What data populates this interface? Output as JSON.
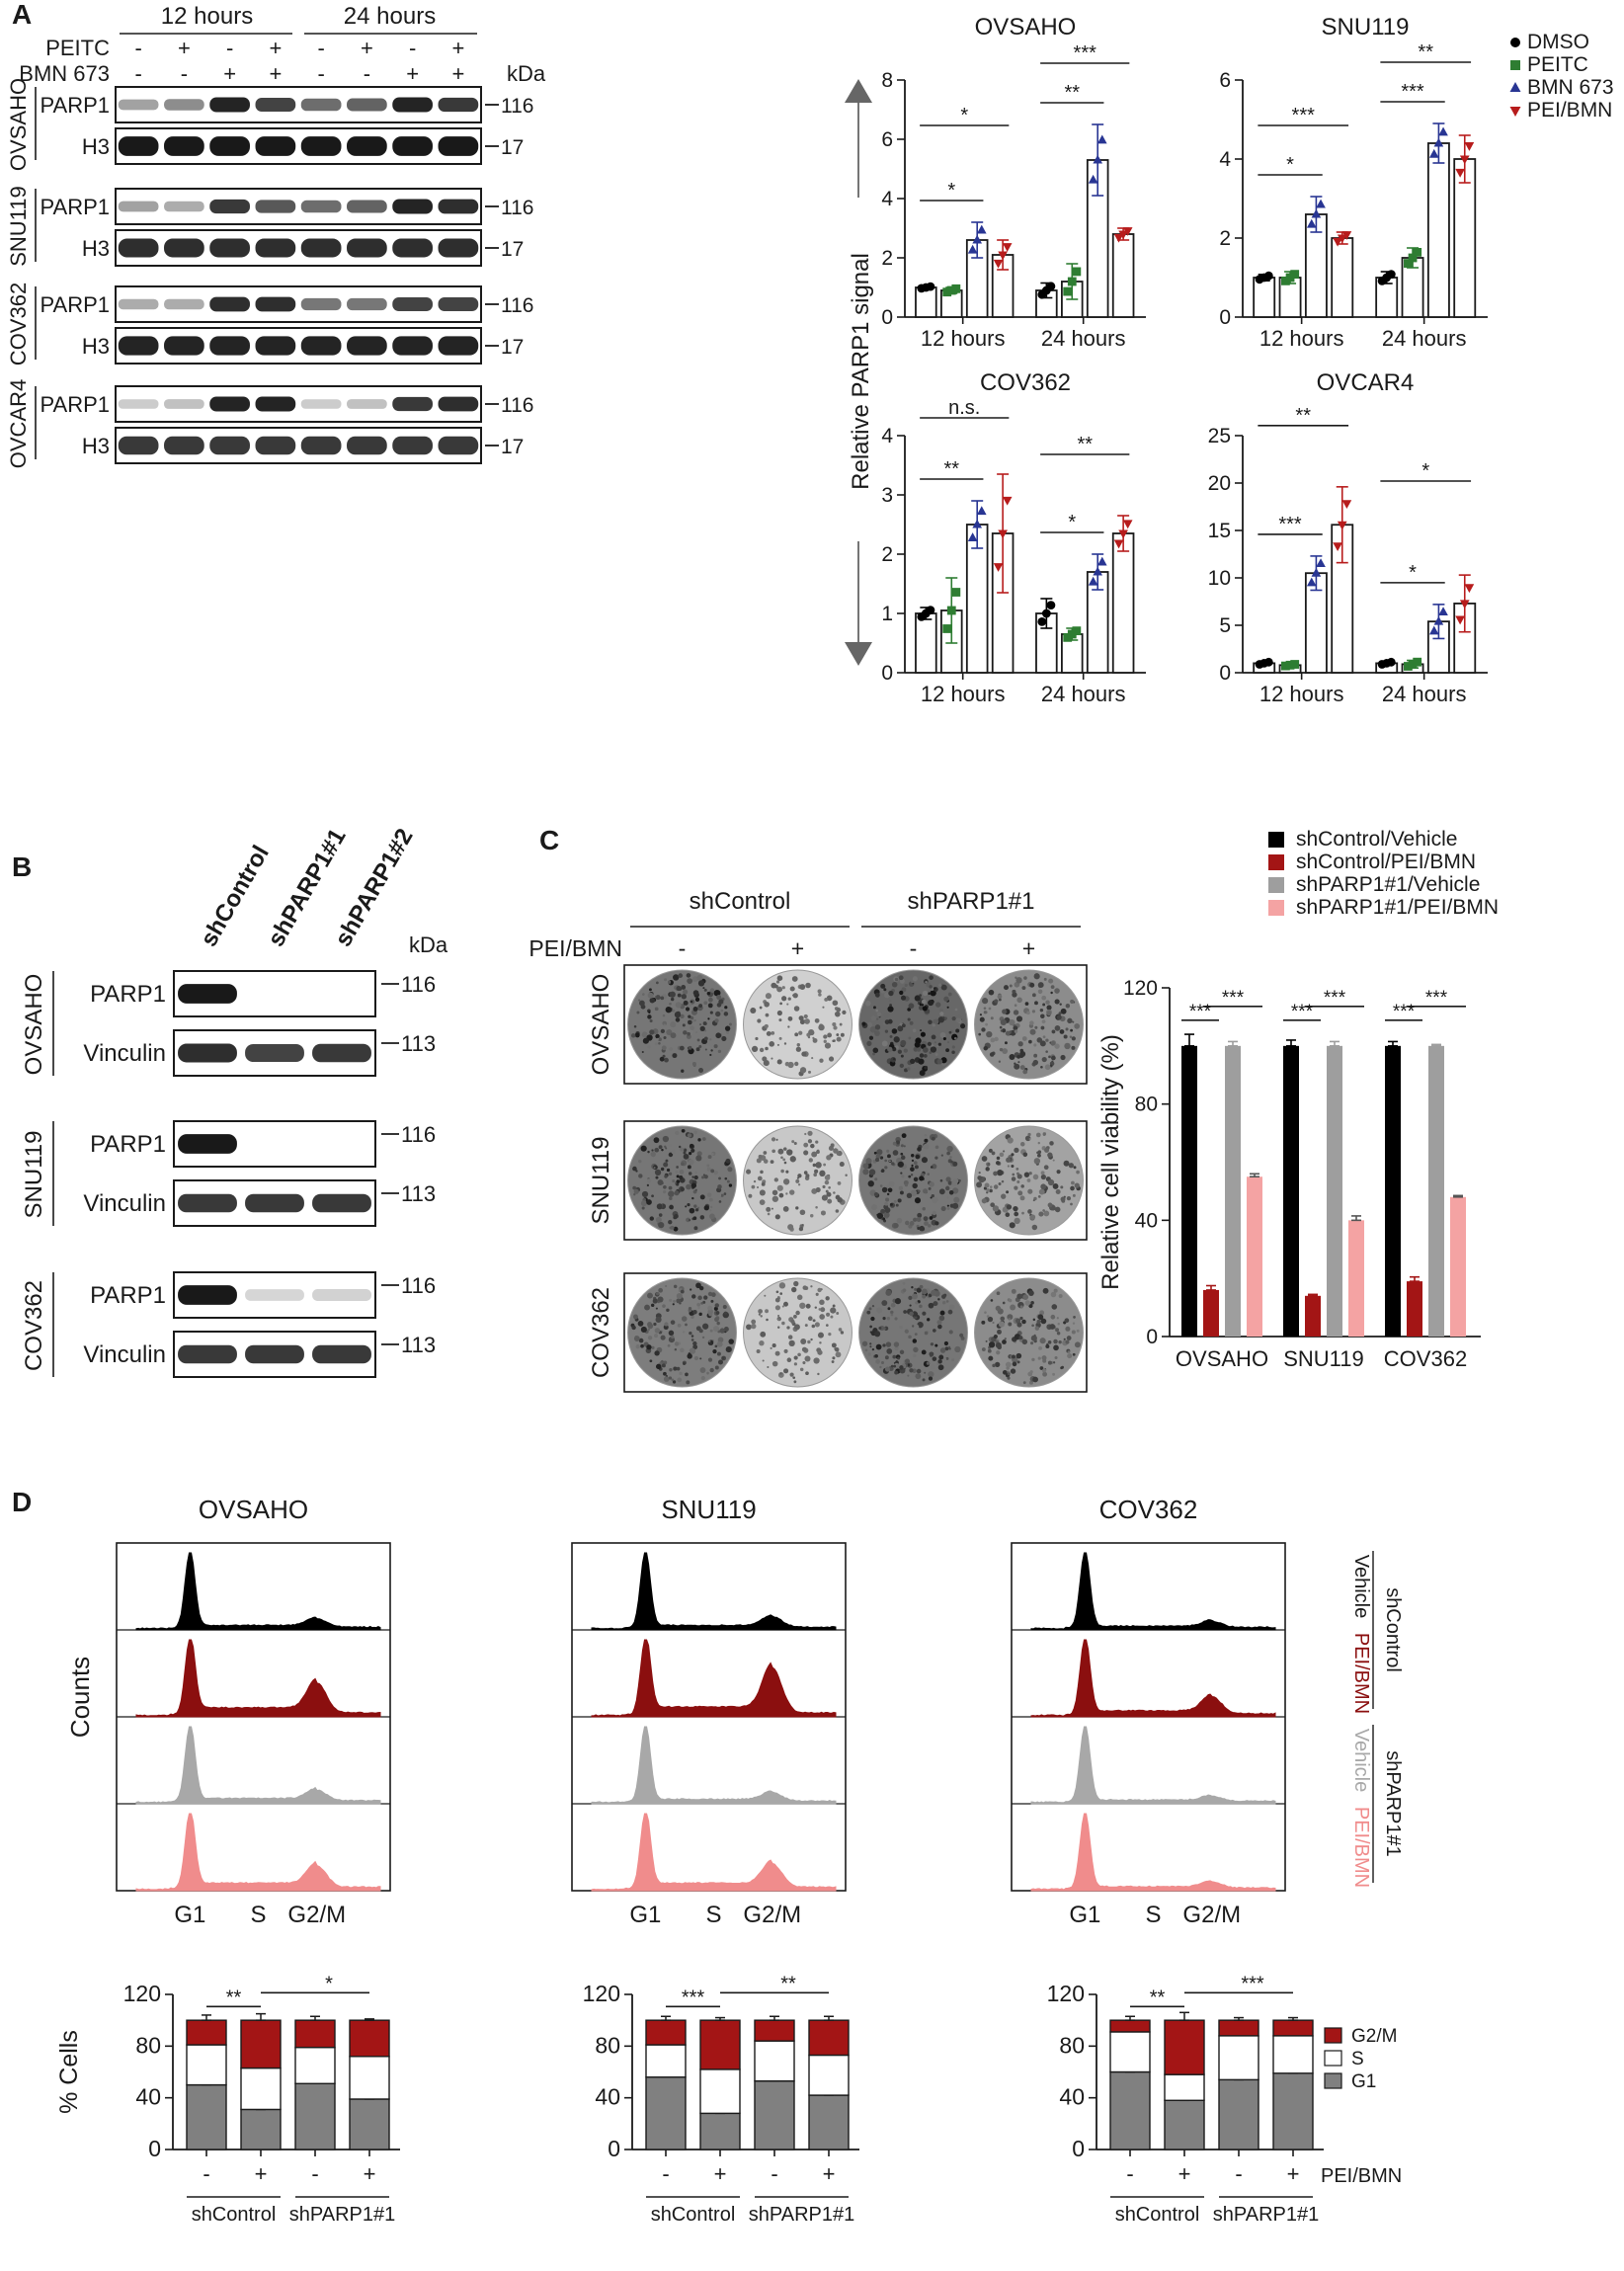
{
  "colors": {
    "dmso": "#000000",
    "peitc": "#2e7d32",
    "bmn": "#283593",
    "pei_bmn": "#b71c1c",
    "black_bar": "#000000",
    "red_bar": "#a31515",
    "grey_bar": "#9e9e9e",
    "pink_bar": "#f4a3a3",
    "hist_black": "#000000",
    "hist_red": "#8b0f0f",
    "hist_grey": "#a8a8a8",
    "hist_pink": "#f08c8c",
    "g2m": "#a31515",
    "s": "#ffffff",
    "g1": "#808080"
  },
  "panel_a": {
    "label": "A",
    "time_headers": [
      "12 hours",
      "24 hours"
    ],
    "treatment_rows": [
      {
        "name": "PEITC",
        "signs": [
          "-",
          "+",
          "-",
          "+",
          "-",
          "+",
          "-",
          "+"
        ]
      },
      {
        "name": "BMN 673",
        "signs": [
          "-",
          "-",
          "+",
          "+",
          "-",
          "-",
          "+",
          "+"
        ]
      }
    ],
    "kda_label": "kDa",
    "blots": [
      {
        "cell_line": "OVSAHO",
        "rows": [
          {
            "protein": "PARP1",
            "size": "116",
            "pattern": [
              0.35,
              0.45,
              0.95,
              0.8,
              0.6,
              0.65,
              0.95,
              0.85
            ]
          },
          {
            "protein": "H3",
            "size": "17",
            "pattern": [
              1,
              1,
              1,
              1,
              1,
              1,
              1,
              1
            ]
          }
        ]
      },
      {
        "cell_line": "SNU119",
        "rows": [
          {
            "protein": "PARP1",
            "size": "116",
            "pattern": [
              0.35,
              0.3,
              0.85,
              0.7,
              0.6,
              0.65,
              0.95,
              0.9
            ]
          },
          {
            "protein": "H3",
            "size": "17",
            "pattern": [
              0.9,
              0.9,
              0.9,
              0.9,
              0.9,
              0.9,
              0.9,
              0.9
            ]
          }
        ]
      },
      {
        "cell_line": "COV362",
        "rows": [
          {
            "protein": "PARP1",
            "size": "116",
            "pattern": [
              0.3,
              0.3,
              0.9,
              0.9,
              0.55,
              0.55,
              0.8,
              0.8
            ]
          },
          {
            "protein": "H3",
            "size": "17",
            "pattern": [
              0.95,
              0.95,
              0.95,
              0.95,
              0.95,
              0.95,
              0.95,
              0.95
            ]
          }
        ]
      },
      {
        "cell_line": "OVCAR4",
        "rows": [
          {
            "protein": "PARP1",
            "size": "116",
            "pattern": [
              0.15,
              0.2,
              0.95,
              0.95,
              0.15,
              0.2,
              0.85,
              0.9
            ]
          },
          {
            "protein": "H3",
            "size": "17",
            "pattern": [
              0.85,
              0.85,
              0.85,
              0.85,
              0.85,
              0.85,
              0.85,
              0.85
            ]
          }
        ]
      }
    ],
    "y_axis_label": "Relative PARP1 signal",
    "legend": [
      "DMSO",
      "PEITC",
      "BMN 673",
      "PEI/BMN"
    ]
  },
  "panel_b": {
    "label": "B",
    "lanes": [
      "shControl",
      "shPARP1#1",
      "shPARP1#2"
    ],
    "kda_label": "kDa",
    "blots": [
      {
        "cell_line": "OVSAHO",
        "rows": [
          {
            "protein": "PARP1",
            "size": "116",
            "pattern": [
              1,
              0,
              0
            ]
          },
          {
            "protein": "Vinculin",
            "size": "113",
            "pattern": [
              0.9,
              0.8,
              0.85
            ]
          }
        ]
      },
      {
        "cell_line": "SNU119",
        "rows": [
          {
            "protein": "PARP1",
            "size": "116",
            "pattern": [
              1,
              0,
              0
            ]
          },
          {
            "protein": "Vinculin",
            "size": "113",
            "pattern": [
              0.85,
              0.85,
              0.85
            ]
          }
        ]
      },
      {
        "cell_line": "COV362",
        "rows": [
          {
            "protein": "PARP1",
            "size": "116",
            "pattern": [
              1,
              0.1,
              0.12
            ]
          },
          {
            "protein": "Vinculin",
            "size": "113",
            "pattern": [
              0.85,
              0.85,
              0.85
            ]
          }
        ]
      }
    ]
  },
  "panel_c": {
    "label": "C",
    "group_headers": [
      "shControl",
      "shPARP1#1"
    ],
    "treatment_label": "PEI/BMN",
    "signs": [
      "-",
      "+",
      "-",
      "+"
    ],
    "rows": [
      "OVSAHO",
      "SNU119",
      "COV362"
    ],
    "well_density": [
      [
        0.85,
        0.25,
        0.95,
        0.7
      ],
      [
        0.85,
        0.3,
        0.85,
        0.55
      ],
      [
        0.8,
        0.3,
        0.85,
        0.7
      ]
    ],
    "legend": [
      "shControl/Vehicle",
      "shControl/PEI/BMN",
      "shPARP1#1/Vehicle",
      "shPARP1#1/PEI/BMN"
    ],
    "y_axis_label": "Relative cell viability (%)"
  },
  "panel_d": {
    "label": "D",
    "cell_lines": [
      "OVSAHO",
      "SNU119",
      "COV362"
    ],
    "y_axis_label": "Counts",
    "phase_labels": [
      "G1",
      "S",
      "G2/M"
    ],
    "side_group_labels": [
      "shControl",
      "shPARP1#1"
    ],
    "side_row_labels": [
      "Vehicle",
      "PEI/BMN",
      "Vehicle",
      "PEI/BMN"
    ],
    "histograms": [
      [
        {
          "g1": 1.0,
          "s": 0.15,
          "g2": 0.2
        },
        {
          "g1": 1.0,
          "s": 0.45,
          "g2": 0.7
        },
        {
          "g1": 1.0,
          "s": 0.2,
          "g2": 0.25
        },
        {
          "g1": 1.0,
          "s": 0.35,
          "g2": 0.5
        }
      ],
      [
        {
          "g1": 1.0,
          "s": 0.15,
          "g2": 0.25
        },
        {
          "g1": 1.0,
          "s": 0.5,
          "g2": 1.05
        },
        {
          "g1": 1.0,
          "s": 0.15,
          "g2": 0.2
        },
        {
          "g1": 1.0,
          "s": 0.35,
          "g2": 0.55
        }
      ],
      [
        {
          "g1": 1.0,
          "s": 0.1,
          "g2": 0.15
        },
        {
          "g1": 1.0,
          "s": 0.25,
          "g2": 0.4
        },
        {
          "g1": 1.0,
          "s": 0.1,
          "g2": 0.12
        },
        {
          "g1": 1.0,
          "s": 0.12,
          "g2": 0.15
        }
      ]
    ],
    "stack_y_label": "% Cells",
    "treatment_label": "PEI/BMN",
    "signs": [
      "-",
      "+",
      "-",
      "+"
    ],
    "group_labels": [
      "shControl",
      "shPARP1#1"
    ],
    "stack_legend": [
      "G2/M",
      "S",
      "G1"
    ]
  },
  "chart_data": [
    {
      "type": "bar",
      "title": "OVSAHO",
      "categories": [
        "12 hours",
        "24 hours"
      ],
      "ylabel": "Relative PARP1 signal",
      "ylim": [
        0,
        8
      ],
      "yticks": [
        0,
        2,
        4,
        6,
        8
      ],
      "series": [
        {
          "name": "DMSO",
          "values": [
            1.0,
            0.9
          ],
          "errors": [
            0.05,
            0.25
          ]
        },
        {
          "name": "PEITC",
          "values": [
            0.9,
            1.2
          ],
          "errors": [
            0.1,
            0.6
          ]
        },
        {
          "name": "BMN 673",
          "values": [
            2.6,
            5.3
          ],
          "errors": [
            0.6,
            1.2
          ]
        },
        {
          "name": "PEI/BMN",
          "values": [
            2.1,
            2.8
          ],
          "errors": [
            0.5,
            0.2
          ]
        }
      ],
      "annotations": [
        {
          "time": 0,
          "from": 0,
          "to": 2,
          "level": 1,
          "text": "*"
        },
        {
          "time": 0,
          "from": 0,
          "to": 3,
          "level": 2,
          "text": "*"
        },
        {
          "time": 1,
          "from": 0,
          "to": 2,
          "level": 1,
          "text": "**"
        },
        {
          "time": 1,
          "from": 0,
          "to": 3,
          "level": 2,
          "text": "***"
        }
      ]
    },
    {
      "type": "bar",
      "title": "SNU119",
      "categories": [
        "12 hours",
        "24 hours"
      ],
      "ylim": [
        0,
        6
      ],
      "yticks": [
        0,
        2,
        4,
        6
      ],
      "series": [
        {
          "name": "DMSO",
          "values": [
            1.0,
            1.0
          ],
          "errors": [
            0.08,
            0.15
          ]
        },
        {
          "name": "PEITC",
          "values": [
            1.0,
            1.5
          ],
          "errors": [
            0.15,
            0.25
          ]
        },
        {
          "name": "BMN 673",
          "values": [
            2.6,
            4.4
          ],
          "errors": [
            0.45,
            0.5
          ]
        },
        {
          "name": "PEI/BMN",
          "values": [
            2.0,
            4.0
          ],
          "errors": [
            0.15,
            0.6
          ]
        }
      ],
      "annotations": [
        {
          "time": 0,
          "from": 0,
          "to": 2,
          "level": 1,
          "text": "*"
        },
        {
          "time": 0,
          "from": 0,
          "to": 3,
          "level": 2,
          "text": "***"
        },
        {
          "time": 1,
          "from": 0,
          "to": 2,
          "level": 1,
          "text": "***"
        },
        {
          "time": 1,
          "from": 0,
          "to": 3,
          "level": 2,
          "text": "**"
        }
      ]
    },
    {
      "type": "bar",
      "title": "COV362",
      "categories": [
        "12 hours",
        "24 hours"
      ],
      "ylabel": "Relative PARP1 signal",
      "ylim": [
        0,
        4
      ],
      "yticks": [
        0,
        1,
        2,
        3,
        4
      ],
      "series": [
        {
          "name": "DMSO",
          "values": [
            1.0,
            1.0
          ],
          "errors": [
            0.1,
            0.25
          ]
        },
        {
          "name": "PEITC",
          "values": [
            1.05,
            0.65
          ],
          "errors": [
            0.55,
            0.1
          ]
        },
        {
          "name": "BMN 673",
          "values": [
            2.5,
            1.7
          ],
          "errors": [
            0.4,
            0.3
          ]
        },
        {
          "name": "PEI/BMN",
          "values": [
            2.35,
            2.35
          ],
          "errors": [
            1.0,
            0.3
          ]
        }
      ],
      "annotations": [
        {
          "time": 0,
          "from": 0,
          "to": 2,
          "level": 1,
          "text": "**"
        },
        {
          "time": 0,
          "from": 0,
          "to": 3,
          "level": 2,
          "text": "n.s."
        },
        {
          "time": 1,
          "from": 0,
          "to": 2,
          "level": 1,
          "text": "*"
        },
        {
          "time": 1,
          "from": 0,
          "to": 3,
          "level": 2,
          "text": "**"
        }
      ]
    },
    {
      "type": "bar",
      "title": "OVCAR4",
      "categories": [
        "12 hours",
        "24 hours"
      ],
      "ylim": [
        0,
        25
      ],
      "yticks": [
        0,
        5,
        10,
        15,
        20,
        25
      ],
      "series": [
        {
          "name": "DMSO",
          "values": [
            1.0,
            1.0
          ],
          "errors": [
            0.2,
            0.2
          ]
        },
        {
          "name": "PEITC",
          "values": [
            0.8,
            0.9
          ],
          "errors": [
            0.15,
            0.4
          ]
        },
        {
          "name": "BMN 673",
          "values": [
            10.5,
            5.4
          ],
          "errors": [
            1.8,
            1.8
          ]
        },
        {
          "name": "PEI/BMN",
          "values": [
            15.6,
            7.3
          ],
          "errors": [
            4.0,
            3.0
          ]
        }
      ],
      "annotations": [
        {
          "time": 0,
          "from": 0,
          "to": 2,
          "level": 1,
          "text": "***"
        },
        {
          "time": 0,
          "from": 0,
          "to": 3,
          "level": 2,
          "text": "**"
        },
        {
          "time": 1,
          "from": 0,
          "to": 2,
          "level": 1,
          "text": "*"
        },
        {
          "time": 1,
          "from": 0,
          "to": 3,
          "level": 2,
          "text": "*"
        }
      ]
    },
    {
      "type": "bar",
      "title": "",
      "categories": [
        "OVSAHO",
        "SNU119",
        "COV362"
      ],
      "ylabel": "Relative cell viability (%)",
      "ylim": [
        0,
        120
      ],
      "yticks": [
        0,
        40,
        80,
        120
      ],
      "series": [
        {
          "name": "shControl/Vehicle",
          "values": [
            100,
            100,
            100
          ],
          "errors": [
            4,
            2,
            1.5
          ]
        },
        {
          "name": "shControl/PEI/BMN",
          "values": [
            16,
            14,
            19
          ],
          "errors": [
            1.5,
            0.5,
            1.5
          ]
        },
        {
          "name": "shPARP1#1/Vehicle",
          "values": [
            100,
            100,
            100
          ],
          "errors": [
            1.5,
            1.5,
            0.5
          ]
        },
        {
          "name": "shPARP1#1/PEI/BMN",
          "values": [
            55,
            40,
            48
          ],
          "errors": [
            1,
            1.5,
            0.5
          ]
        }
      ],
      "annotations": [
        {
          "group": 0,
          "from": 0,
          "to": 1,
          "text": "***"
        },
        {
          "group": 0,
          "from": 1,
          "to": 3,
          "text": "***"
        },
        {
          "group": 1,
          "from": 0,
          "to": 1,
          "text": "***"
        },
        {
          "group": 1,
          "from": 1,
          "to": 3,
          "text": "***"
        },
        {
          "group": 2,
          "from": 0,
          "to": 1,
          "text": "***"
        },
        {
          "group": 2,
          "from": 1,
          "to": 3,
          "text": "***"
        }
      ]
    },
    {
      "type": "bar",
      "stacked": true,
      "title": "OVSAHO",
      "ylabel": "% Cells",
      "ylim": [
        0,
        120
      ],
      "yticks": [
        0,
        40,
        80,
        120
      ],
      "categories": [
        "-",
        "+",
        "-",
        "+"
      ],
      "series": [
        {
          "name": "G1",
          "values": [
            50,
            31,
            51,
            39
          ],
          "errors": [
            1,
            6,
            2,
            4
          ]
        },
        {
          "name": "S",
          "values": [
            31,
            32,
            28,
            33
          ],
          "errors": [
            0,
            0,
            0,
            0
          ]
        },
        {
          "name": "G2/M",
          "values": [
            19,
            37,
            21,
            28
          ],
          "errors": [
            4,
            5,
            3,
            1
          ]
        }
      ],
      "annotations": [
        {
          "from": 0,
          "to": 1,
          "text": "**"
        },
        {
          "from": 1,
          "to": 3,
          "text": "*"
        }
      ]
    },
    {
      "type": "bar",
      "stacked": true,
      "title": "SNU119",
      "ylim": [
        0,
        120
      ],
      "yticks": [
        0,
        40,
        80,
        120
      ],
      "categories": [
        "-",
        "+",
        "-",
        "+"
      ],
      "series": [
        {
          "name": "G1",
          "values": [
            56,
            28,
            53,
            42
          ],
          "errors": [
            7,
            7,
            1,
            5
          ]
        },
        {
          "name": "S",
          "values": [
            25,
            34,
            31,
            31
          ],
          "errors": [
            0,
            0,
            0,
            0
          ]
        },
        {
          "name": "G2/M",
          "values": [
            19,
            38,
            16,
            27
          ],
          "errors": [
            3,
            2,
            3,
            3
          ]
        }
      ],
      "annotations": [
        {
          "from": 0,
          "to": 1,
          "text": "***"
        },
        {
          "from": 1,
          "to": 3,
          "text": "**"
        }
      ]
    },
    {
      "type": "bar",
      "stacked": true,
      "title": "COV362",
      "ylim": [
        0,
        120
      ],
      "yticks": [
        0,
        40,
        80,
        120
      ],
      "categories": [
        "-",
        "+",
        "-",
        "+"
      ],
      "series": [
        {
          "name": "G1",
          "values": [
            60,
            38,
            54,
            59
          ],
          "errors": [
            4,
            3,
            11,
            2
          ]
        },
        {
          "name": "S",
          "values": [
            31,
            20,
            34,
            29
          ],
          "errors": [
            0,
            0,
            0,
            0
          ]
        },
        {
          "name": "G2/M",
          "values": [
            9,
            42,
            12,
            12
          ],
          "errors": [
            3,
            6,
            2,
            2
          ]
        }
      ],
      "annotations": [
        {
          "from": 0,
          "to": 1,
          "text": "**"
        },
        {
          "from": 1,
          "to": 3,
          "text": "***"
        }
      ]
    }
  ]
}
